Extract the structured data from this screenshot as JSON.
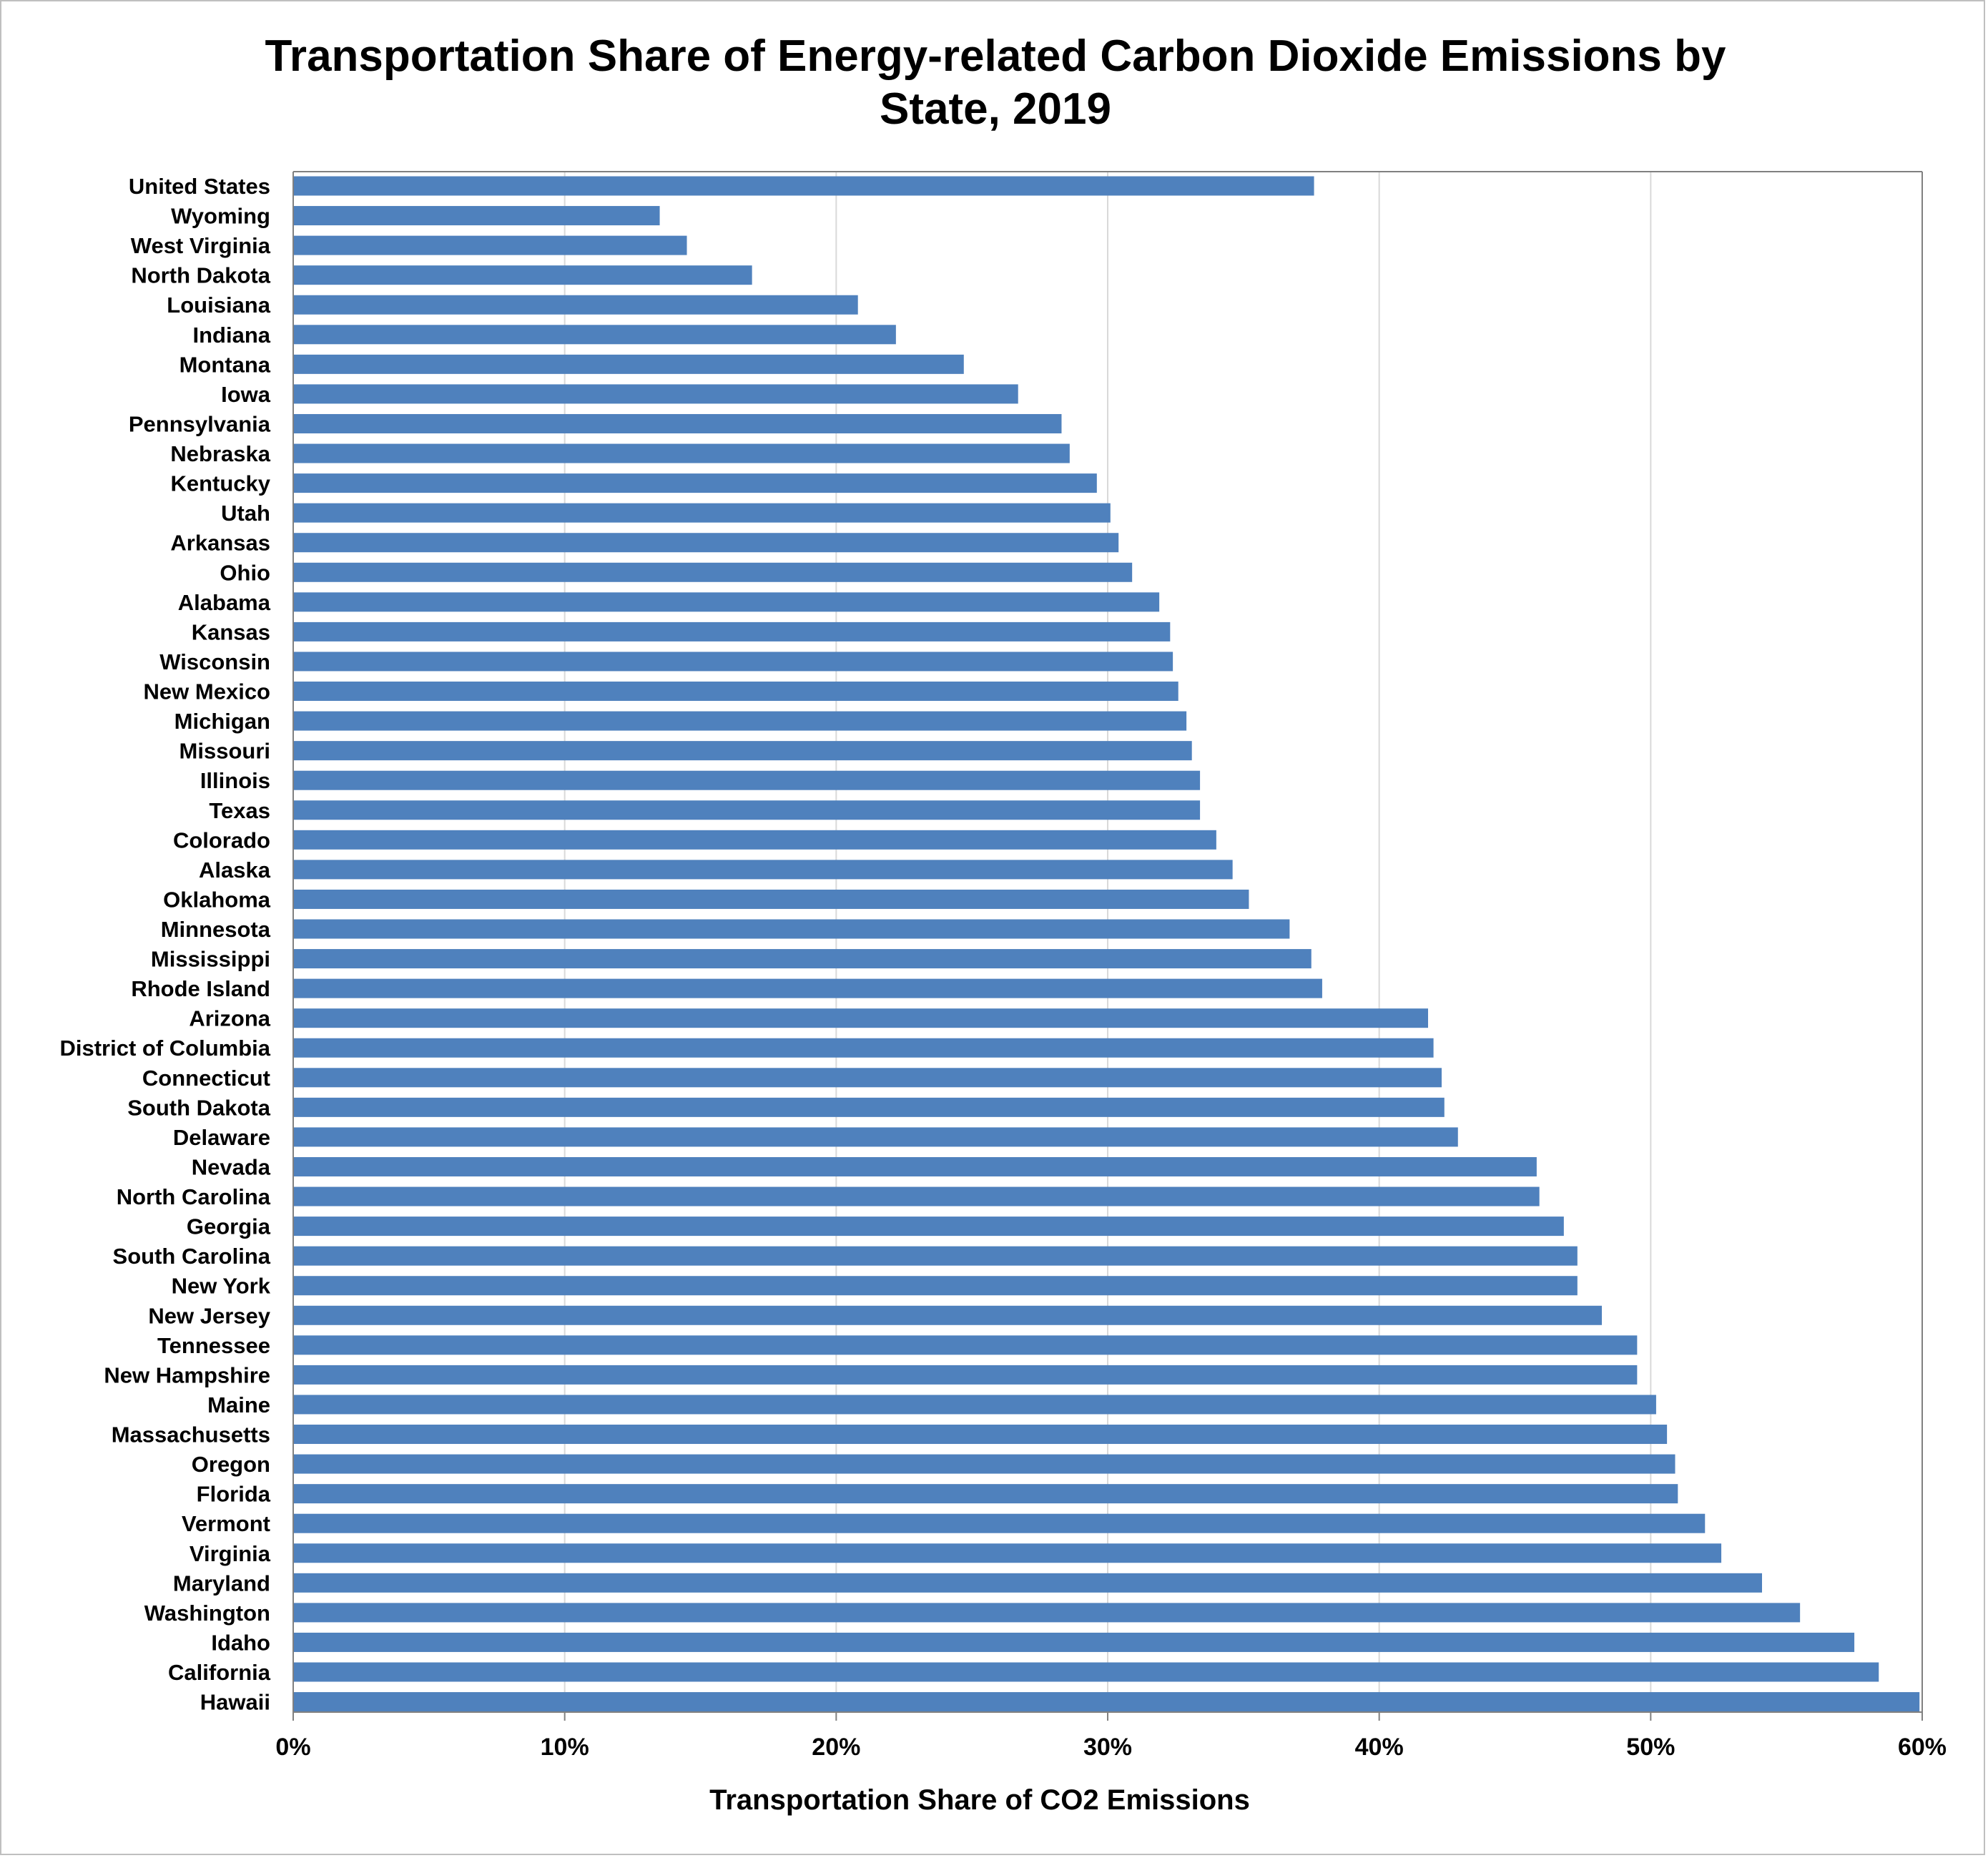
{
  "chart_data": {
    "type": "bar",
    "orientation": "horizontal",
    "title_lines": [
      "Transportation Share of Energy-related Carbon Dioxide Emissions by",
      "State, 2019"
    ],
    "xlabel": "Transportation Share of CO2 Emissions",
    "ylabel": "",
    "xlim": [
      0,
      0.6
    ],
    "x_ticks": [
      0,
      0.1,
      0.2,
      0.3,
      0.4,
      0.5,
      0.6
    ],
    "x_tick_labels": [
      "0%",
      "10%",
      "20%",
      "30%",
      "40%",
      "50%",
      "60%"
    ],
    "grid": "vertical",
    "bar_color": "#4f81bd",
    "categories": [
      "United States",
      "Wyoming",
      "West Virginia",
      "North Dakota",
      "Louisiana",
      "Indiana",
      "Montana",
      "Iowa",
      "Pennsylvania",
      "Nebraska",
      "Kentucky",
      "Utah",
      "Arkansas",
      "Ohio",
      "Alabama",
      "Kansas",
      "Wisconsin",
      "New Mexico",
      "Michigan",
      "Missouri",
      "Illinois",
      "Texas",
      "Colorado",
      "Alaska",
      "Oklahoma",
      "Minnesota",
      "Mississippi",
      "Rhode Island",
      "Arizona",
      "District of Columbia",
      "Connecticut",
      "South Dakota",
      "Delaware",
      "Nevada",
      "North Carolina",
      "Georgia",
      "South Carolina",
      "New York",
      "New Jersey",
      "Tennessee",
      "New Hampshire",
      "Maine",
      "Massachusetts",
      "Oregon",
      "Florida",
      "Vermont",
      "Virginia",
      "Maryland",
      "Washington",
      "Idaho",
      "California",
      "Hawaii"
    ],
    "values": [
      0.376,
      0.135,
      0.145,
      0.169,
      0.208,
      0.222,
      0.247,
      0.267,
      0.283,
      0.286,
      0.296,
      0.301,
      0.304,
      0.309,
      0.319,
      0.323,
      0.324,
      0.326,
      0.329,
      0.331,
      0.334,
      0.334,
      0.34,
      0.346,
      0.352,
      0.367,
      0.375,
      0.379,
      0.418,
      0.42,
      0.423,
      0.424,
      0.429,
      0.458,
      0.459,
      0.468,
      0.473,
      0.473,
      0.482,
      0.495,
      0.495,
      0.502,
      0.506,
      0.509,
      0.51,
      0.52,
      0.526,
      0.541,
      0.555,
      0.575,
      0.584,
      0.599
    ]
  }
}
